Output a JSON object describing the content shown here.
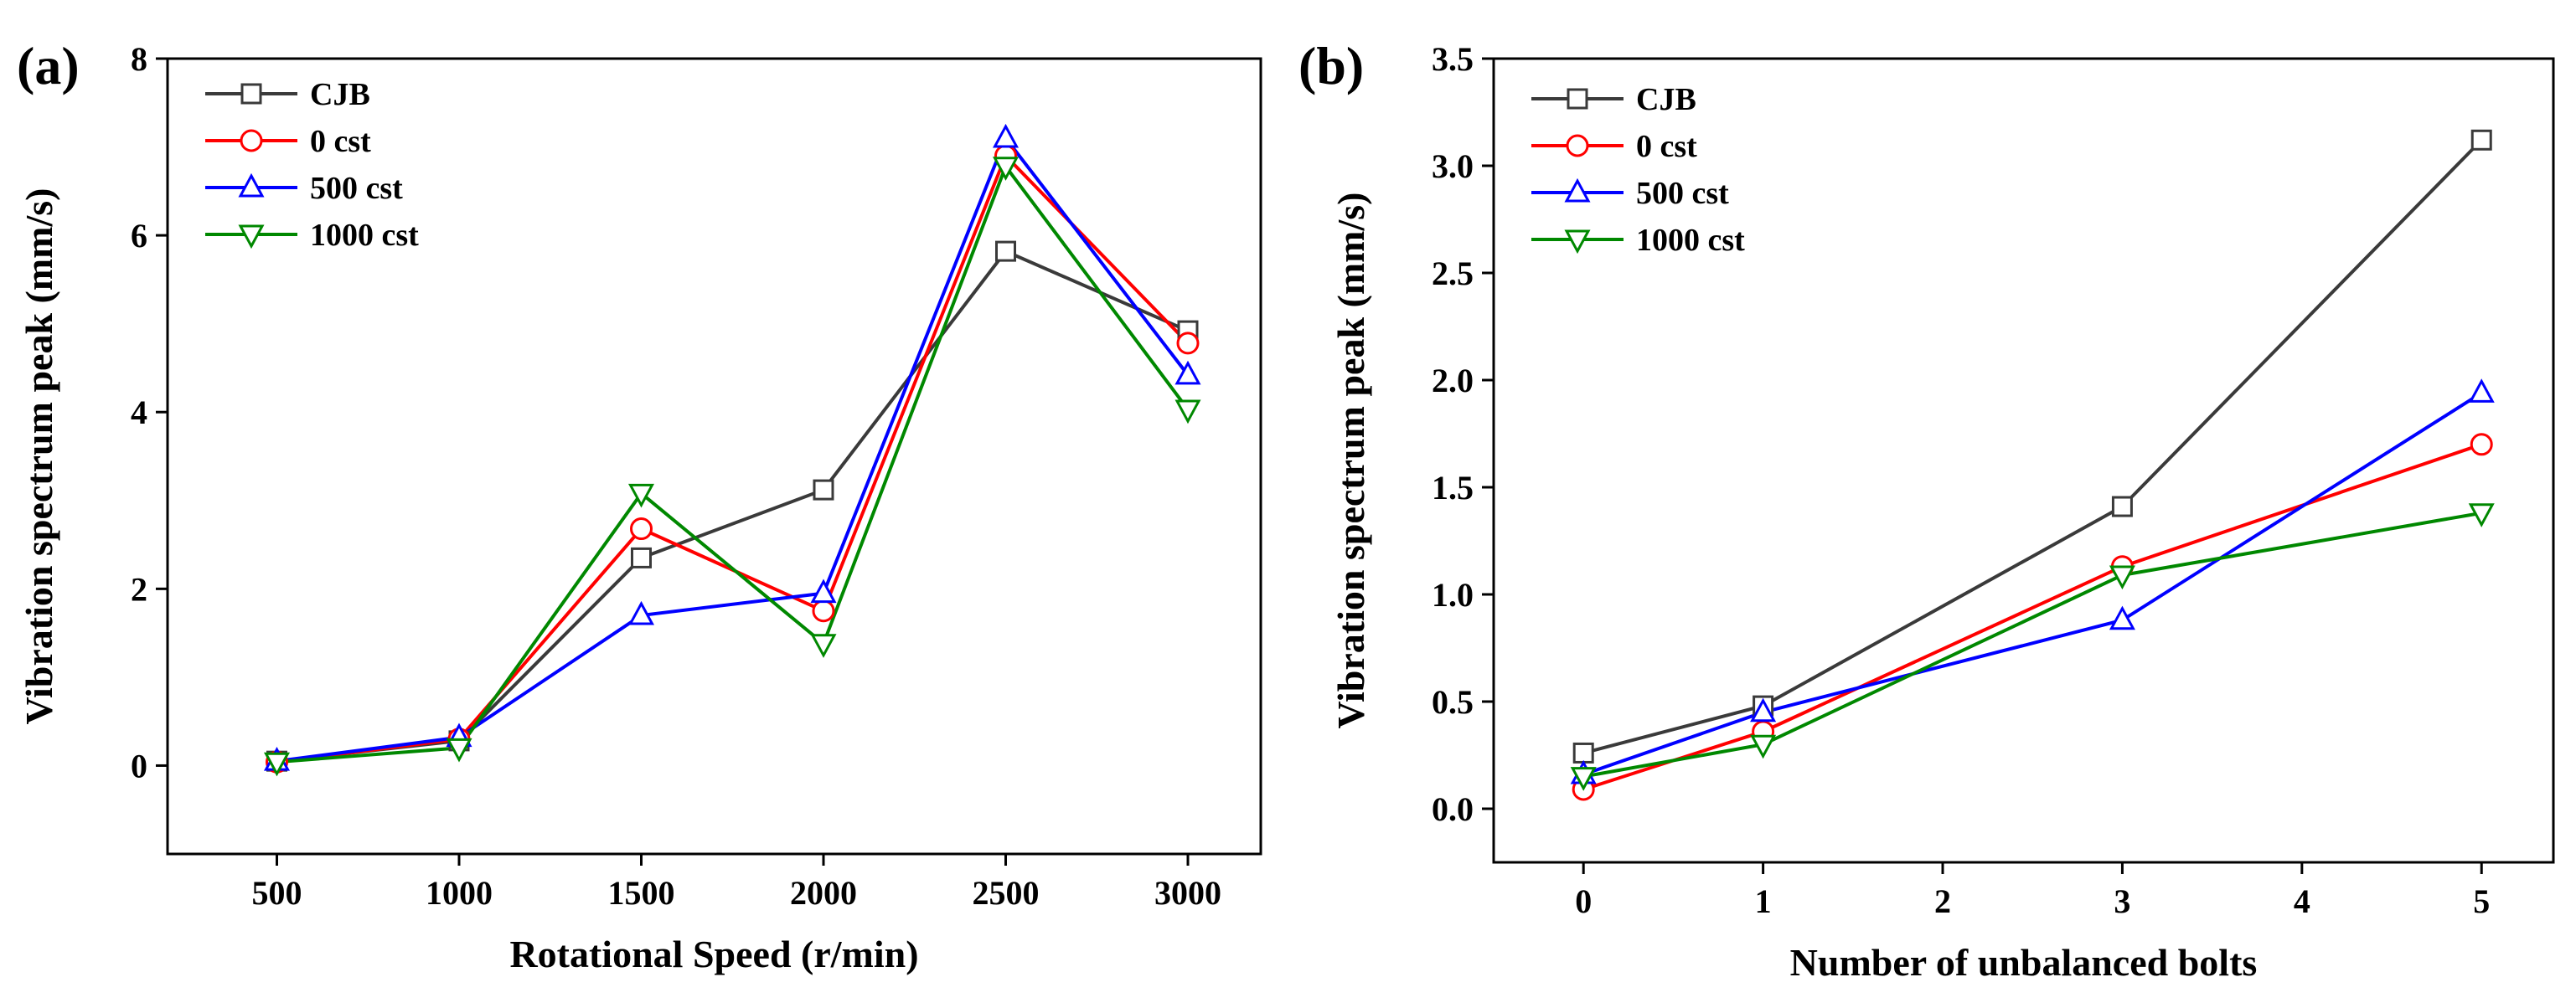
{
  "chart_data": [
    {
      "type": "line",
      "panel_label": "(a)",
      "xlabel": "Rotational Speed (r/min)",
      "ylabel": "Vibration spectrum peak (mm/s)",
      "categories": [
        "500",
        "1000",
        "1500",
        "2000",
        "2500",
        "3000"
      ],
      "x": [
        500,
        1000,
        1500,
        2000,
        2500,
        3000
      ],
      "xlim": [
        200,
        3200
      ],
      "ylim": [
        -1,
        8
      ],
      "yticks": [
        0,
        2,
        4,
        6,
        8
      ],
      "ytick_labels": [
        "0",
        "2",
        "4",
        "6",
        "8"
      ],
      "grid": false,
      "legend_position": "top-left",
      "series": [
        {
          "name": "CJB",
          "color": "#3a3a3a",
          "marker": "square",
          "values": [
            0.05,
            0.28,
            2.35,
            3.12,
            5.82,
            4.92
          ]
        },
        {
          "name": "0 cst",
          "color": "#ff0000",
          "marker": "circle",
          "values": [
            0.04,
            0.3,
            2.68,
            1.75,
            6.9,
            4.78
          ]
        },
        {
          "name": "500 cst",
          "color": "#0000ff",
          "marker": "triangle-up",
          "values": [
            0.05,
            0.32,
            1.7,
            1.95,
            7.1,
            4.42
          ]
        },
        {
          "name": "1000 cst",
          "color": "#008800",
          "marker": "triangle-down",
          "values": [
            0.04,
            0.2,
            3.08,
            1.38,
            6.78,
            4.03
          ]
        }
      ]
    },
    {
      "type": "line",
      "panel_label": "(b)",
      "xlabel": "Number of unbalanced bolts",
      "ylabel": "Vibration spectrum peak (mm/s)",
      "x": [
        0,
        1,
        3,
        5
      ],
      "xticks": [
        0,
        1,
        2,
        3,
        4,
        5
      ],
      "xtick_labels": [
        "0",
        "1",
        "2",
        "3",
        "4",
        "5"
      ],
      "xlim": [
        -0.5,
        5.4
      ],
      "ylim": [
        -0.25,
        3.5
      ],
      "yticks": [
        0.0,
        0.5,
        1.0,
        1.5,
        2.0,
        2.5,
        3.0,
        3.5
      ],
      "ytick_labels": [
        "0.0",
        "0.5",
        "1.0",
        "1.5",
        "2.0",
        "2.5",
        "3.0",
        "3.5"
      ],
      "grid": false,
      "legend_position": "top-left",
      "series": [
        {
          "name": "CJB",
          "color": "#3a3a3a",
          "marker": "square",
          "values": [
            0.26,
            0.48,
            1.41,
            3.12
          ]
        },
        {
          "name": "0 cst",
          "color": "#ff0000",
          "marker": "circle",
          "values": [
            0.09,
            0.36,
            1.13,
            1.7
          ]
        },
        {
          "name": "500 cst",
          "color": "#0000ff",
          "marker": "triangle-up",
          "values": [
            0.16,
            0.45,
            0.88,
            1.94
          ]
        },
        {
          "name": "1000 cst",
          "color": "#008800",
          "marker": "triangle-down",
          "values": [
            0.15,
            0.3,
            1.09,
            1.38
          ]
        }
      ]
    }
  ]
}
